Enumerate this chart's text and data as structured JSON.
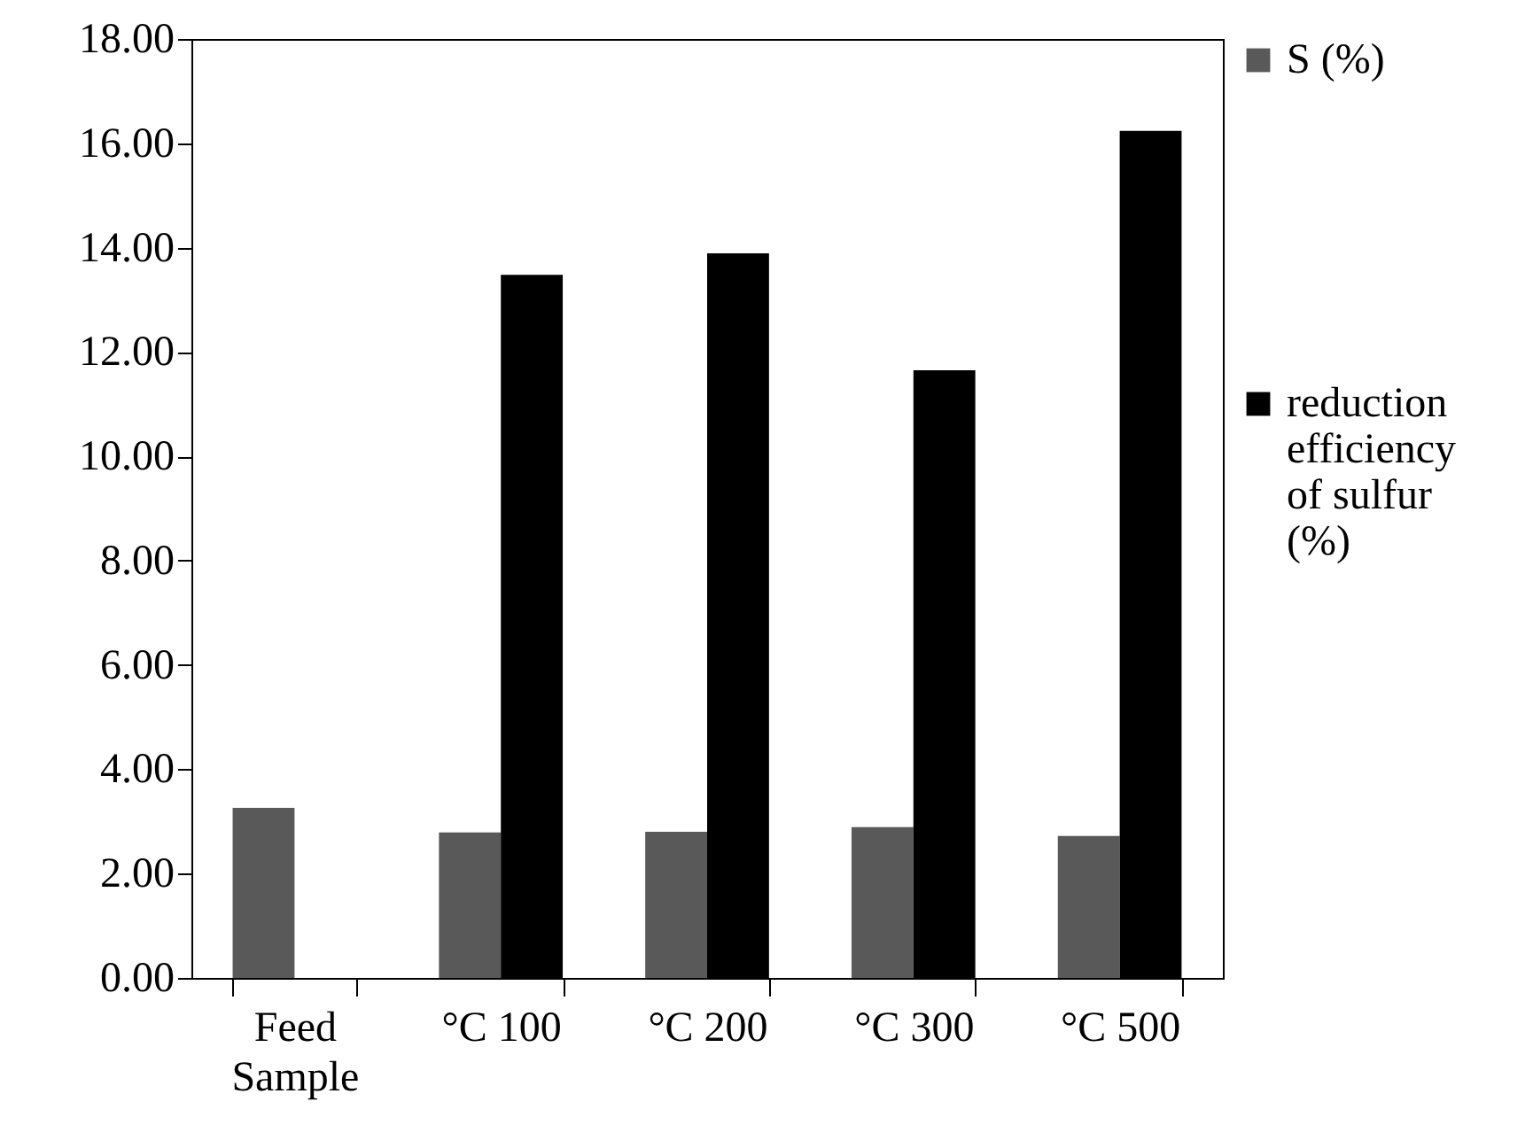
{
  "chart_data": {
    "type": "bar",
    "categories": [
      "Feed Sample",
      "°C 100",
      "°C 200",
      "°C 300",
      "°C 500"
    ],
    "series": [
      {
        "name": "S (%)",
        "color": "#595959",
        "values": [
          3.26,
          2.79,
          2.8,
          2.89,
          2.72
        ]
      },
      {
        "name": "reduction efficiency of sulfur (%)",
        "color": "#000000",
        "values": [
          null,
          13.48,
          13.89,
          11.65,
          16.24
        ]
      }
    ],
    "ylim": [
      0,
      18
    ],
    "yticks": [
      {
        "value": 0,
        "label": "0.00"
      },
      {
        "value": 2,
        "label": "2.00"
      },
      {
        "value": 4,
        "label": "4.00"
      },
      {
        "value": 6,
        "label": "6.00"
      },
      {
        "value": 8,
        "label": "8.00"
      },
      {
        "value": 10,
        "label": "10.00"
      },
      {
        "value": 12,
        "label": "12.00"
      },
      {
        "value": 14,
        "label": "14.00"
      },
      {
        "value": 16,
        "label": "16.00"
      },
      {
        "value": 18,
        "label": "18.00"
      }
    ],
    "grid": false,
    "legend": "right"
  }
}
